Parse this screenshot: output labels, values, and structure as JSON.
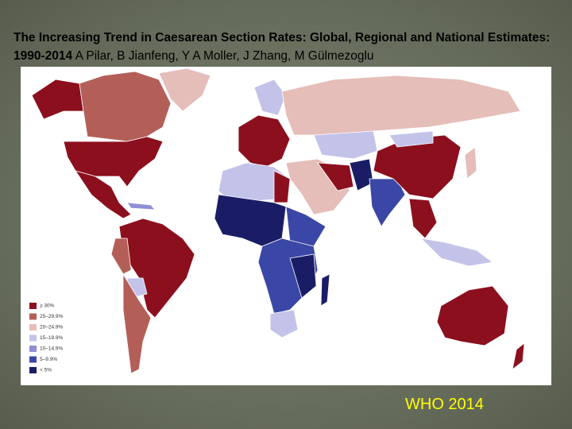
{
  "title": {
    "bold": "The Increasing Trend in Caesarean Section Rates: Global, Regional and National Estimates: 1990-2014",
    "authors": "A Pilar, B Jianfeng, Y A Moller, J Zhang, M Gülmezoglu"
  },
  "legend": [
    {
      "label": "≥ 30%",
      "color": "#8c0f1e"
    },
    {
      "label": "25–29.9%",
      "color": "#b35f58"
    },
    {
      "label": "20–24.9%",
      "color": "#e5bdb9"
    },
    {
      "label": "15–19.9%",
      "color": "#c3c3ea"
    },
    {
      "label": "10–14.9%",
      "color": "#8e8fd6"
    },
    {
      "label": "5–9.9%",
      "color": "#3b47a6"
    },
    {
      "label": "< 5%",
      "color": "#1a1d66"
    }
  ],
  "source": "WHO 2014"
}
